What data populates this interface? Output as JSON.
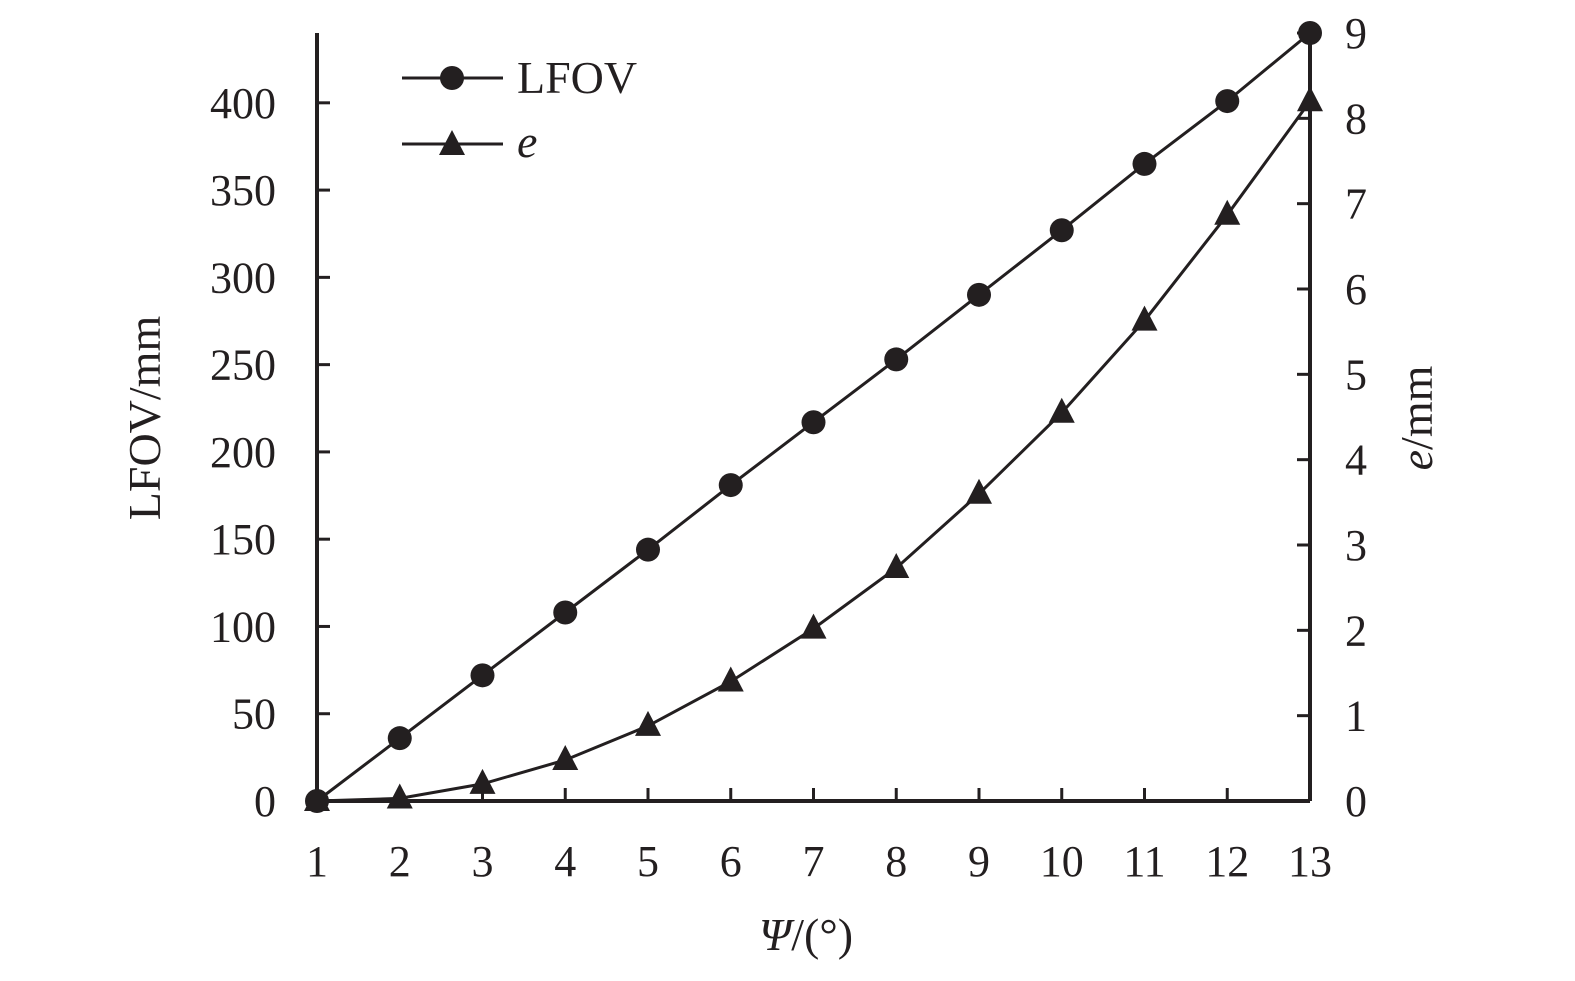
{
  "chart_data": {
    "type": "line",
    "x": [
      1,
      2,
      3,
      4,
      5,
      6,
      7,
      8,
      9,
      10,
      11,
      12,
      13
    ],
    "x_ticks": [
      "1",
      "2",
      "3",
      "4",
      "5",
      "6",
      "7",
      "8",
      "9",
      "10",
      "11",
      "12",
      "13"
    ],
    "xlabel_italic": "Ψ",
    "xlabel_rest": "/(°)",
    "ylabel_left": "LFOV/mm",
    "ylabel_right_italic": "e",
    "ylabel_right_rest": "/mm",
    "ylim_left": [
      0,
      440
    ],
    "ylim_right": [
      0,
      9
    ],
    "yticks_left": [
      "0",
      "50",
      "100",
      "150",
      "200",
      "250",
      "300",
      "350",
      "400"
    ],
    "yticks_right": [
      "0",
      "1",
      "2",
      "3",
      "4",
      "5",
      "6",
      "7",
      "8",
      "9"
    ],
    "legend_position": "top-left",
    "grid": false,
    "series": [
      {
        "name": "LFOV",
        "axis": "left",
        "marker": "circle",
        "italic": false,
        "values": [
          0,
          36,
          72,
          108,
          144,
          181,
          217,
          253,
          290,
          327,
          365,
          401,
          440
        ]
      },
      {
        "name": "e",
        "axis": "right",
        "marker": "triangle",
        "italic": true,
        "values": [
          0,
          0.03,
          0.2,
          0.48,
          0.88,
          1.4,
          2.02,
          2.73,
          3.6,
          4.55,
          5.63,
          6.87,
          8.2
        ]
      }
    ],
    "colors": {
      "ink": "#231f20"
    }
  }
}
